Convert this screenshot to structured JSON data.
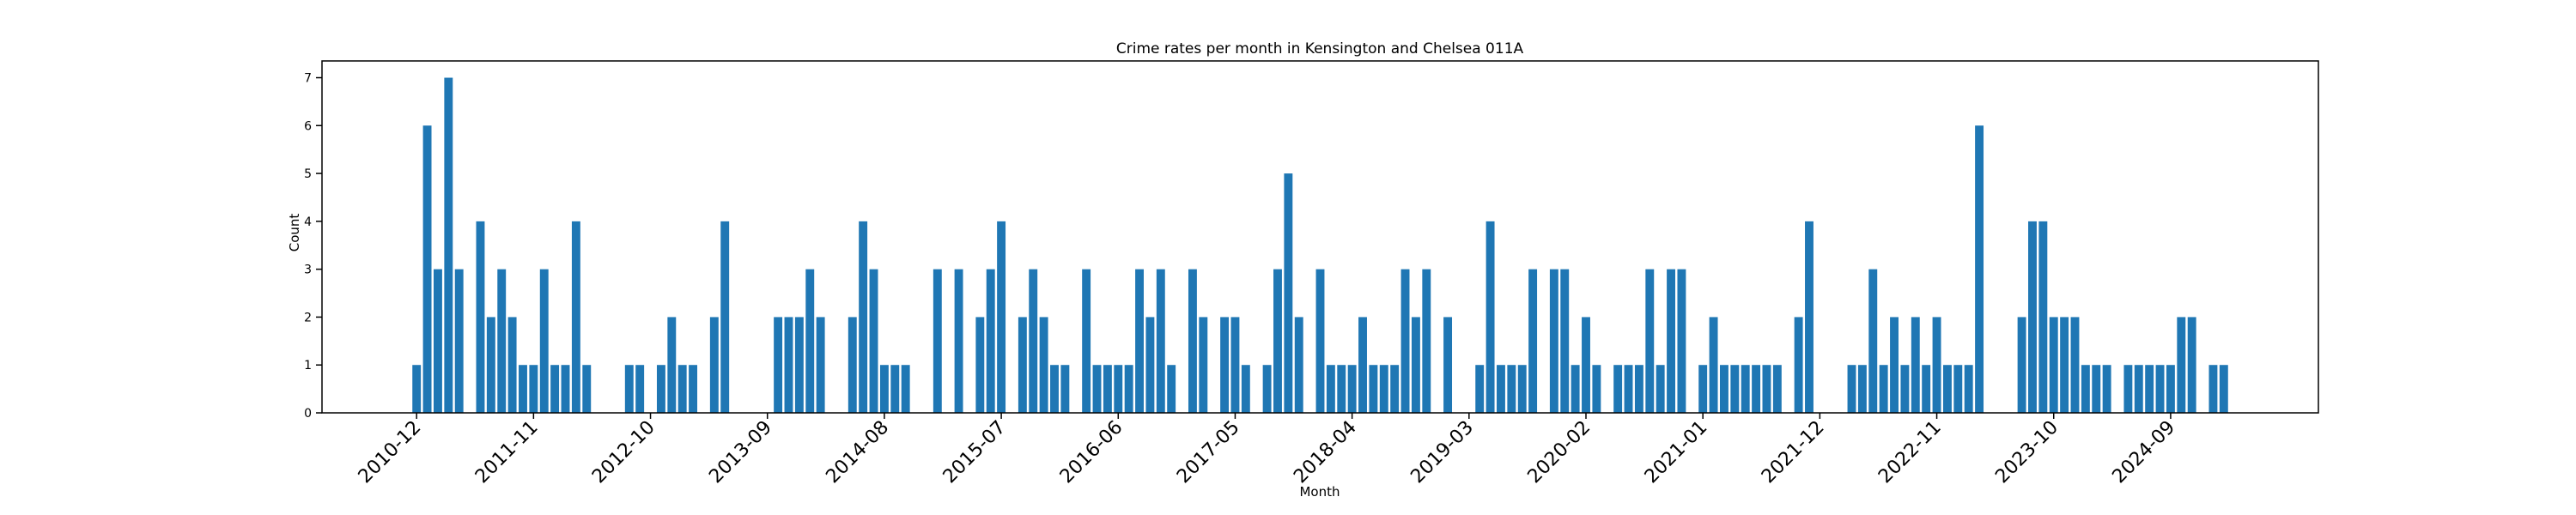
{
  "chart_data": {
    "type": "bar",
    "title": "Crime rates per month in Kensington and Chelsea 011A",
    "x_label": "Month",
    "y_label": "Count",
    "color": "#1f77b4",
    "categories": [
      "2010-12",
      null,
      null,
      null,
      null,
      null,
      null,
      null,
      null,
      null,
      null,
      "2011-11",
      null,
      null,
      null,
      null,
      null,
      null,
      null,
      null,
      null,
      null,
      "2012-10",
      null,
      null,
      null,
      null,
      null,
      null,
      null,
      null,
      null,
      null,
      "2013-09",
      null,
      null,
      null,
      null,
      null,
      null,
      null,
      null,
      null,
      null,
      "2014-08",
      null,
      null,
      null,
      null,
      null,
      null,
      null,
      null,
      null,
      null,
      "2015-07",
      null,
      null,
      null,
      null,
      null,
      null,
      null,
      null,
      null,
      null,
      "2016-06",
      null,
      null,
      null,
      null,
      null,
      null,
      null,
      null,
      null,
      null,
      "2017-05",
      null,
      null,
      null,
      null,
      null,
      null,
      null,
      null,
      null,
      null,
      "2018-04",
      null,
      null,
      null,
      null,
      null,
      null,
      null,
      null,
      null,
      null,
      "2019-03",
      null,
      null,
      null,
      null,
      null,
      null,
      null,
      null,
      null,
      null,
      "2020-02",
      null,
      null,
      null,
      null,
      null,
      null,
      null,
      null,
      null,
      null,
      "2021-01",
      null,
      null,
      null,
      null,
      null,
      null,
      null,
      null,
      null,
      null,
      "2021-12",
      null,
      null,
      null,
      null,
      null,
      null,
      null,
      null,
      null,
      null,
      "2022-11",
      null,
      null,
      null,
      null,
      null,
      null,
      null,
      null,
      null,
      null,
      "2023-10",
      null,
      null,
      null,
      null,
      null,
      null,
      null,
      null,
      null,
      null,
      "2024-09",
      null,
      null,
      null,
      null,
      null
    ],
    "values": [
      1,
      6,
      3,
      7,
      3,
      0,
      4,
      2,
      3,
      2,
      1,
      1,
      3,
      1,
      1,
      4,
      1,
      0,
      0,
      0,
      1,
      1,
      0,
      1,
      2,
      1,
      1,
      0,
      2,
      4,
      0,
      0,
      0,
      0,
      2,
      2,
      2,
      3,
      2,
      0,
      0,
      2,
      4,
      3,
      1,
      1,
      1,
      0,
      0,
      3,
      0,
      3,
      0,
      2,
      3,
      4,
      0,
      2,
      3,
      2,
      1,
      1,
      0,
      3,
      1,
      1,
      1,
      1,
      3,
      2,
      3,
      1,
      0,
      3,
      2,
      0,
      2,
      2,
      1,
      0,
      1,
      3,
      5,
      2,
      0,
      3,
      1,
      1,
      1,
      2,
      1,
      1,
      1,
      3,
      2,
      3,
      0,
      2,
      0,
      0,
      1,
      4,
      1,
      1,
      1,
      3,
      0,
      3,
      3,
      1,
      2,
      1,
      0,
      1,
      1,
      1,
      3,
      1,
      3,
      3,
      0,
      1,
      2,
      1,
      1,
      1,
      1,
      1,
      1,
      0,
      2,
      4,
      0,
      0,
      0,
      1,
      1,
      3,
      1,
      2,
      1,
      2,
      1,
      2,
      1,
      1,
      1,
      6,
      0,
      0,
      0,
      2,
      4,
      4,
      2,
      2,
      2,
      1,
      1,
      1,
      0,
      1,
      1,
      1,
      1,
      1,
      2,
      2,
      0,
      1,
      1
    ],
    "ylim": [
      0,
      7.35
    ],
    "yticks": [
      0,
      1,
      2,
      3,
      4,
      5,
      6,
      7
    ]
  }
}
